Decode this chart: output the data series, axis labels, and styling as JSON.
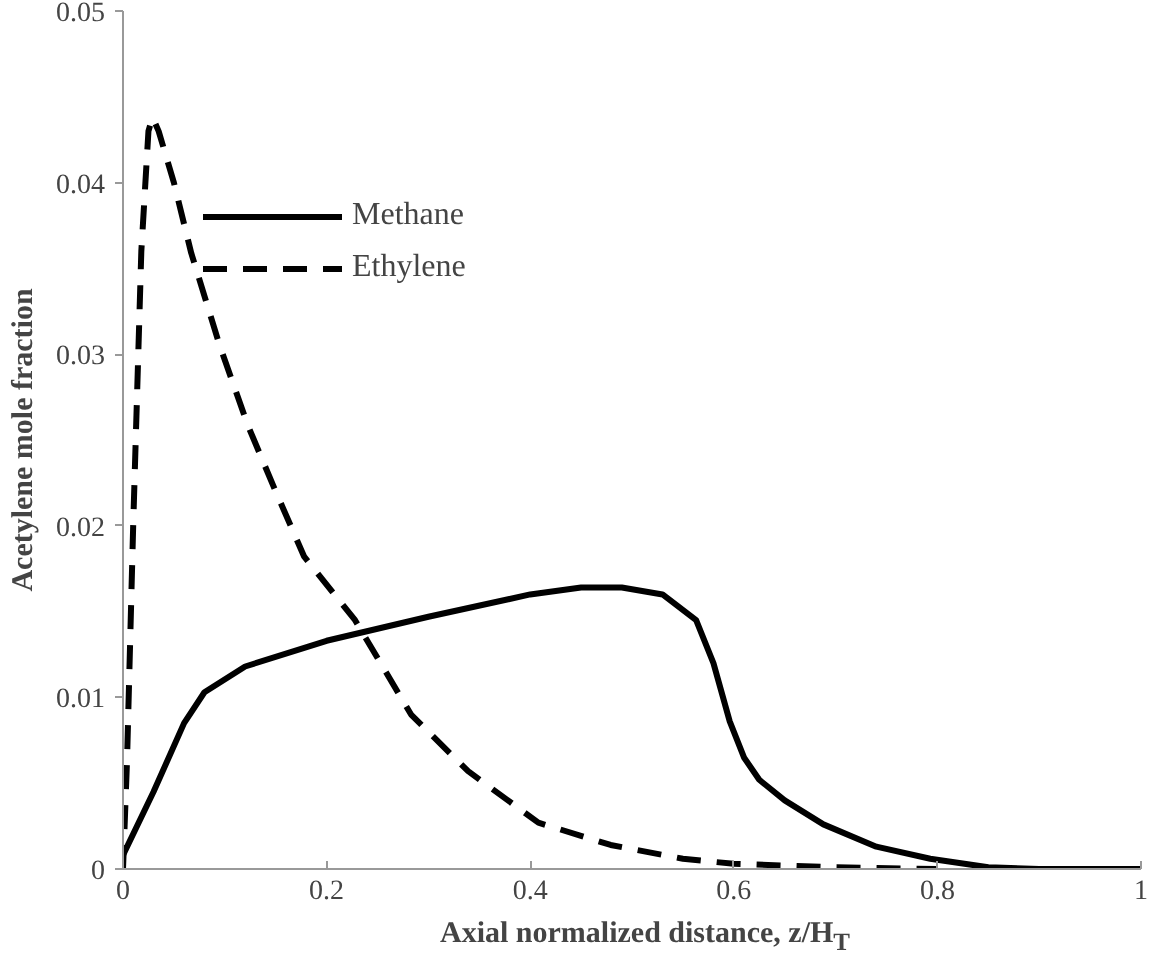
{
  "chart_data": {
    "type": "line",
    "xlabel": "Axial normalized distance, z/H$_{T}$",
    "ylabel": "Acetylene mole fraction",
    "xlim": [
      0,
      1
    ],
    "ylim": [
      0,
      0.05
    ],
    "xticks": [
      0,
      0.2,
      0.4,
      0.6,
      0.8,
      1
    ],
    "yticks": [
      0,
      0.01,
      0.02,
      0.03,
      0.04,
      0.05
    ],
    "grid": false,
    "legend": "top",
    "marker": "none",
    "series": [
      {
        "name": "Methane",
        "color": "#000000",
        "line_style": "solid",
        "x": [
          0,
          0.03,
          0.06,
          0.08,
          0.12,
          0.2,
          0.3,
          0.4,
          0.45,
          0.49,
          0.53,
          0.563,
          0.58,
          0.596,
          0.61,
          0.625,
          0.65,
          0.688,
          0.74,
          0.793,
          0.85,
          0.9,
          1.0
        ],
        "values": [
          0.0008,
          0.0045,
          0.0085,
          0.0103,
          0.0118,
          0.0133,
          0.0147,
          0.016,
          0.0164,
          0.0164,
          0.016,
          0.0145,
          0.012,
          0.0086,
          0.0065,
          0.0052,
          0.004,
          0.0026,
          0.0013,
          0.0006,
          0.0001,
          0.0,
          0.0
        ]
      },
      {
        "name": "Ethylene",
        "color": "#000000",
        "line_style": "dashed",
        "x": [
          0,
          0.004,
          0.01,
          0.018,
          0.025,
          0.029,
          0.035,
          0.05,
          0.067,
          0.095,
          0.123,
          0.15,
          0.178,
          0.228,
          0.283,
          0.339,
          0.408,
          0.479,
          0.55,
          0.6,
          0.7,
          0.8
        ],
        "values": [
          0.0,
          0.0064,
          0.02,
          0.036,
          0.043,
          0.0438,
          0.043,
          0.04,
          0.0359,
          0.0305,
          0.0258,
          0.022,
          0.0182,
          0.0145,
          0.009,
          0.0057,
          0.0027,
          0.0014,
          0.0006,
          0.0003,
          0.0001,
          0.0
        ]
      }
    ]
  }
}
